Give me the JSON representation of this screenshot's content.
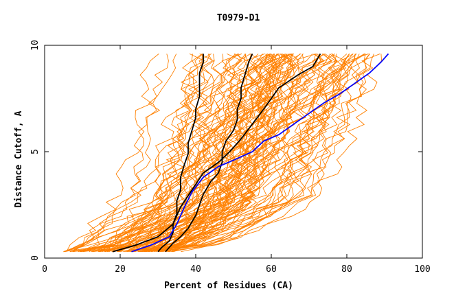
{
  "chart_data": {
    "type": "line",
    "title": "T0979-D1",
    "xlabel": "Percent of Residues (CA)",
    "ylabel": "Distance Cutoff, A",
    "xlim": [
      0,
      100
    ],
    "ylim": [
      0,
      10
    ],
    "x_ticks": [
      "0",
      "20",
      "40",
      "60",
      "80",
      "100"
    ],
    "y_ticks": [
      "0",
      "5",
      "10"
    ],
    "grid": false,
    "legend": "none",
    "colors": {
      "other_models": "#ff8000",
      "highlighted": "#000000",
      "selected": "#0000ff"
    },
    "background_band": {
      "x_range": [
        5,
        100
      ],
      "y_range": [
        0.3,
        9.6
      ],
      "note": "dense cloud of orange model curves"
    },
    "series": [
      {
        "color": "#000000",
        "points": [
          [
            30,
            0.3
          ],
          [
            31,
            0.5
          ],
          [
            33,
            0.8
          ],
          [
            34,
            1.2
          ],
          [
            34,
            1.6
          ],
          [
            35,
            2.1
          ],
          [
            35,
            2.7
          ],
          [
            36,
            3.2
          ],
          [
            36,
            3.8
          ],
          [
            37,
            4.4
          ],
          [
            38,
            4.9
          ],
          [
            38,
            5.4
          ],
          [
            39,
            6.0
          ],
          [
            40,
            6.6
          ],
          [
            40,
            7.0
          ],
          [
            41,
            7.6
          ],
          [
            41,
            8.1
          ],
          [
            41,
            8.7
          ],
          [
            42,
            9.2
          ],
          [
            42,
            9.6
          ]
        ]
      },
      {
        "color": "#000000",
        "points": [
          [
            32,
            0.3
          ],
          [
            34,
            0.7
          ],
          [
            36,
            1.0
          ],
          [
            38,
            1.4
          ],
          [
            40,
            2.0
          ],
          [
            42,
            3.0
          ],
          [
            44,
            3.6
          ],
          [
            46,
            4.0
          ],
          [
            47,
            4.5
          ],
          [
            47,
            5.0
          ],
          [
            48,
            5.5
          ],
          [
            50,
            6.0
          ],
          [
            51,
            6.5
          ],
          [
            51,
            7.0
          ],
          [
            52,
            7.5
          ],
          [
            52,
            8.0
          ],
          [
            53,
            8.6
          ],
          [
            54,
            9.2
          ],
          [
            55,
            9.6
          ]
        ]
      },
      {
        "color": "#000000",
        "points": [
          [
            18,
            0.3
          ],
          [
            24,
            0.6
          ],
          [
            30,
            1.0
          ],
          [
            34,
            1.6
          ],
          [
            36,
            2.4
          ],
          [
            39,
            3.2
          ],
          [
            42,
            4.0
          ],
          [
            46,
            4.5
          ],
          [
            49,
            5.0
          ],
          [
            52,
            5.6
          ],
          [
            55,
            6.3
          ],
          [
            58,
            7.0
          ],
          [
            62,
            8.0
          ],
          [
            67,
            8.6
          ],
          [
            71,
            9.0
          ],
          [
            73,
            9.6
          ]
        ]
      },
      {
        "color": "#0000ff",
        "points": [
          [
            23,
            0.3
          ],
          [
            28,
            0.6
          ],
          [
            33,
            1.0
          ],
          [
            35,
            1.6
          ],
          [
            37,
            2.4
          ],
          [
            39,
            3.1
          ],
          [
            42,
            3.8
          ],
          [
            46,
            4.3
          ],
          [
            50,
            4.6
          ],
          [
            55,
            5.0
          ],
          [
            58,
            5.5
          ],
          [
            62,
            5.8
          ],
          [
            66,
            6.3
          ],
          [
            70,
            6.8
          ],
          [
            74,
            7.3
          ],
          [
            78,
            7.7
          ],
          [
            82,
            8.2
          ],
          [
            86,
            8.7
          ],
          [
            89,
            9.2
          ],
          [
            91,
            9.6
          ]
        ]
      }
    ]
  }
}
